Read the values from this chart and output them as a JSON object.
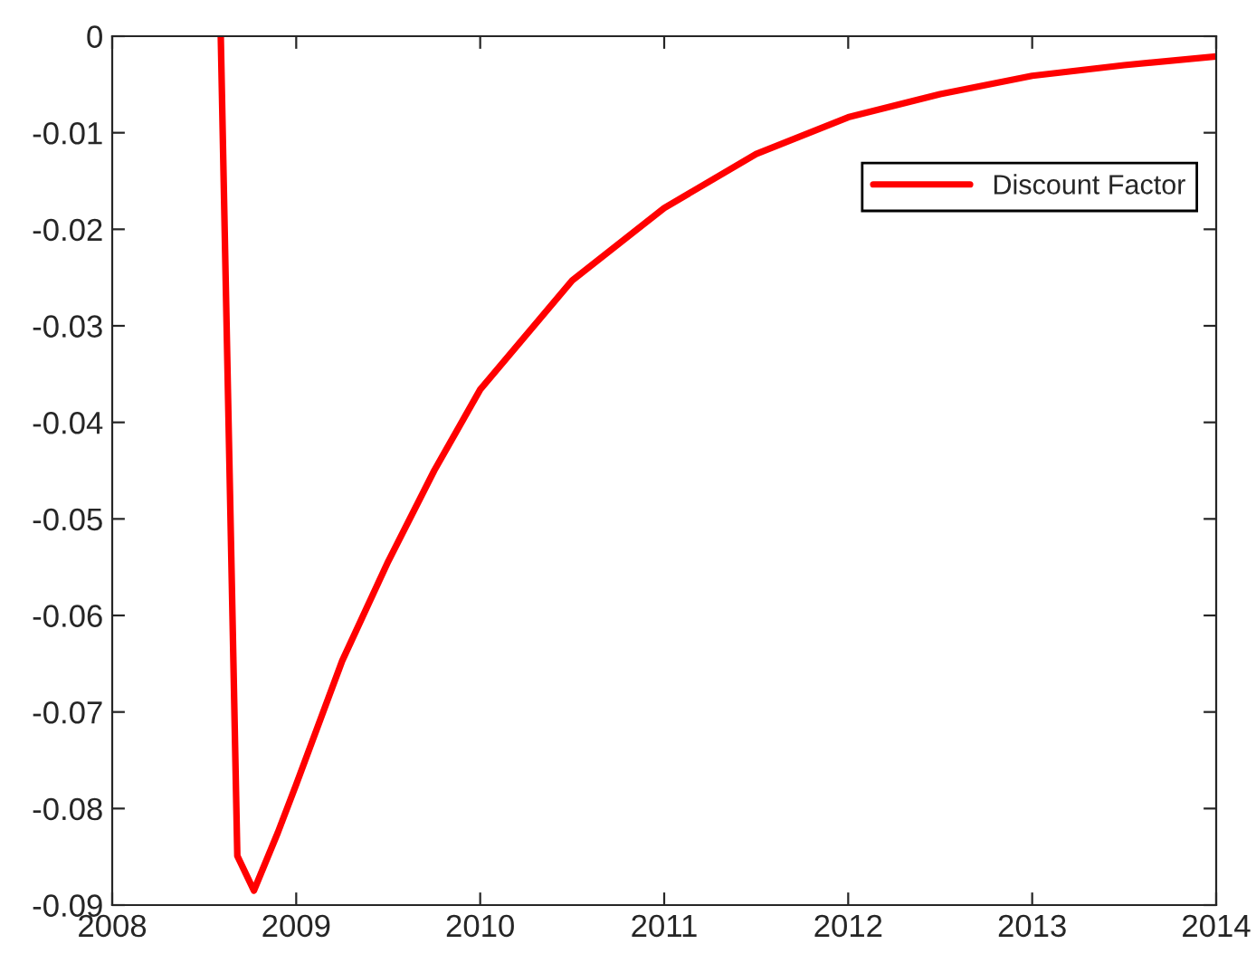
{
  "chart_data": {
    "type": "line",
    "x": [
      2008.59,
      2008.68,
      2008.77,
      2008.9,
      2009.0,
      2009.25,
      2009.5,
      2009.75,
      2010.0,
      2010.5,
      2011.0,
      2011.5,
      2012.0,
      2012.5,
      2013.0,
      2013.5,
      2014.0
    ],
    "series": [
      {
        "name": "Discount Factor",
        "color": "#ff0000",
        "values": [
          0,
          -0.0849,
          -0.0885,
          -0.0825,
          -0.0775,
          -0.0647,
          -0.0544,
          -0.045,
          -0.0366,
          -0.0253,
          -0.0178,
          -0.0122,
          -0.0084,
          -0.006,
          -0.0041,
          -0.003,
          -0.0021
        ]
      }
    ],
    "xlim": [
      2008,
      2014
    ],
    "xticks": [
      2008,
      2009,
      2010,
      2011,
      2012,
      2013,
      2014
    ],
    "ylim": [
      -0.09,
      0
    ],
    "yticks": [
      -0.09,
      -0.08,
      -0.07,
      -0.06,
      -0.05,
      -0.04,
      -0.03,
      -0.02,
      -0.01,
      0
    ],
    "grid": false,
    "legend": "top right",
    "line_style": "solid",
    "marker": "none"
  }
}
